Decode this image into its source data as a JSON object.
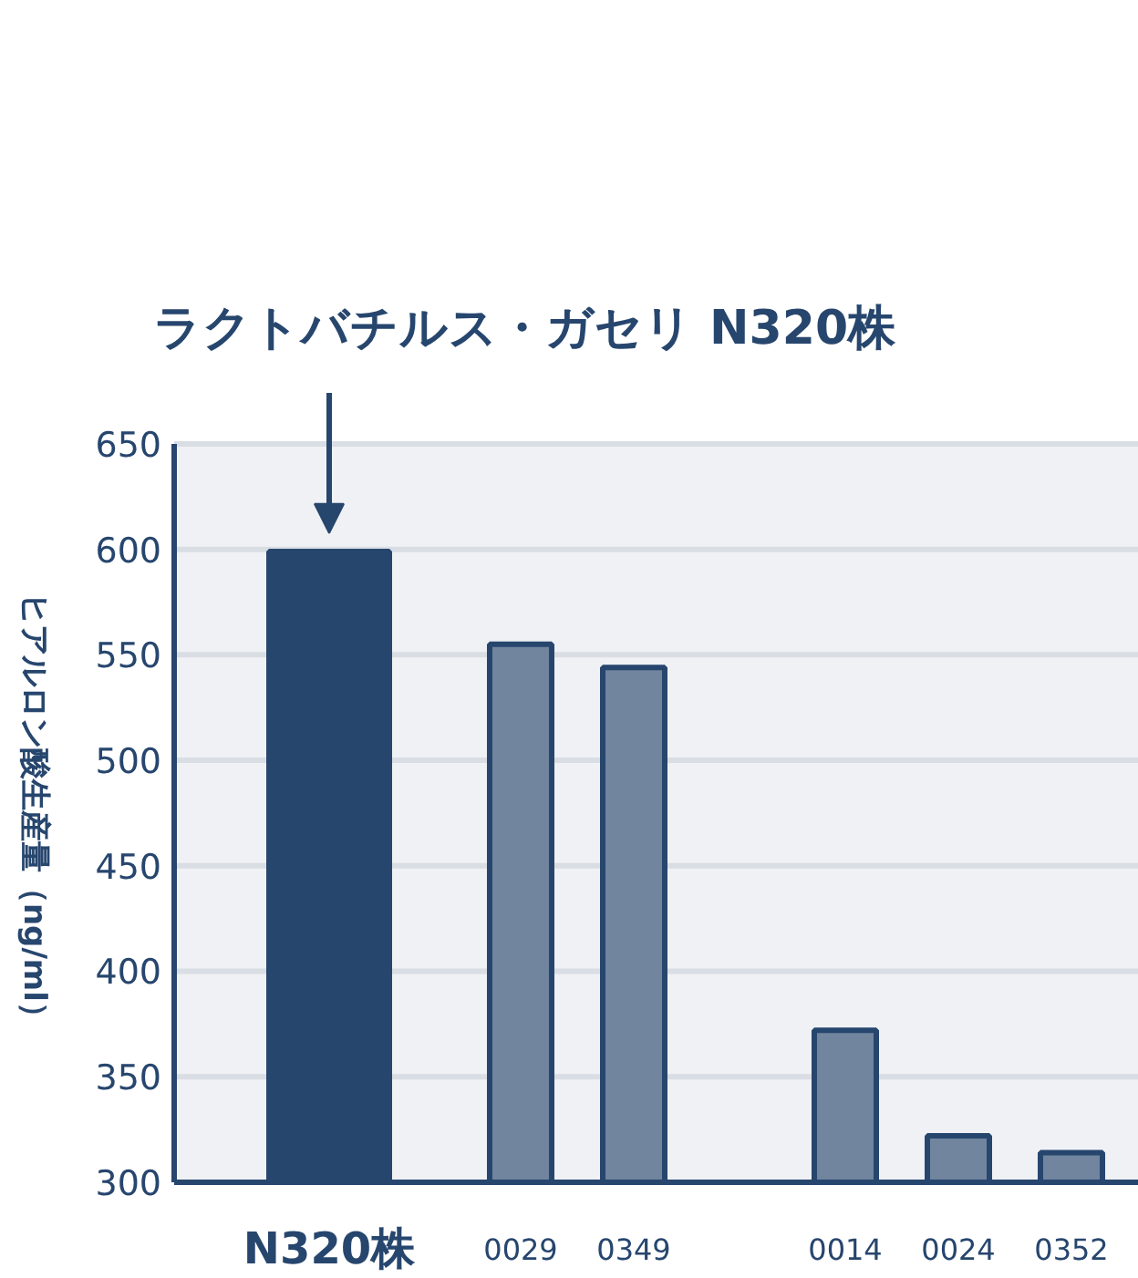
{
  "chart_data": {
    "type": "bar",
    "ylabel": "ヒアルロン酸生産量（ng/ml）",
    "categories": [
      "N320株",
      "0029",
      "0349",
      "0014",
      "0024",
      "0352"
    ],
    "values": [
      599,
      555,
      544,
      372,
      322,
      314
    ],
    "colors": [
      "#27466e",
      "#71859f",
      "#71859f",
      "#71859f",
      "#71859f",
      "#71859f"
    ],
    "ylim": [
      300,
      650
    ],
    "yticks": [
      300,
      350,
      400,
      450,
      500,
      550,
      600,
      650
    ],
    "grid": "y",
    "annotations": [
      "ラクトバチルス・ガセリ N320株"
    ]
  }
}
